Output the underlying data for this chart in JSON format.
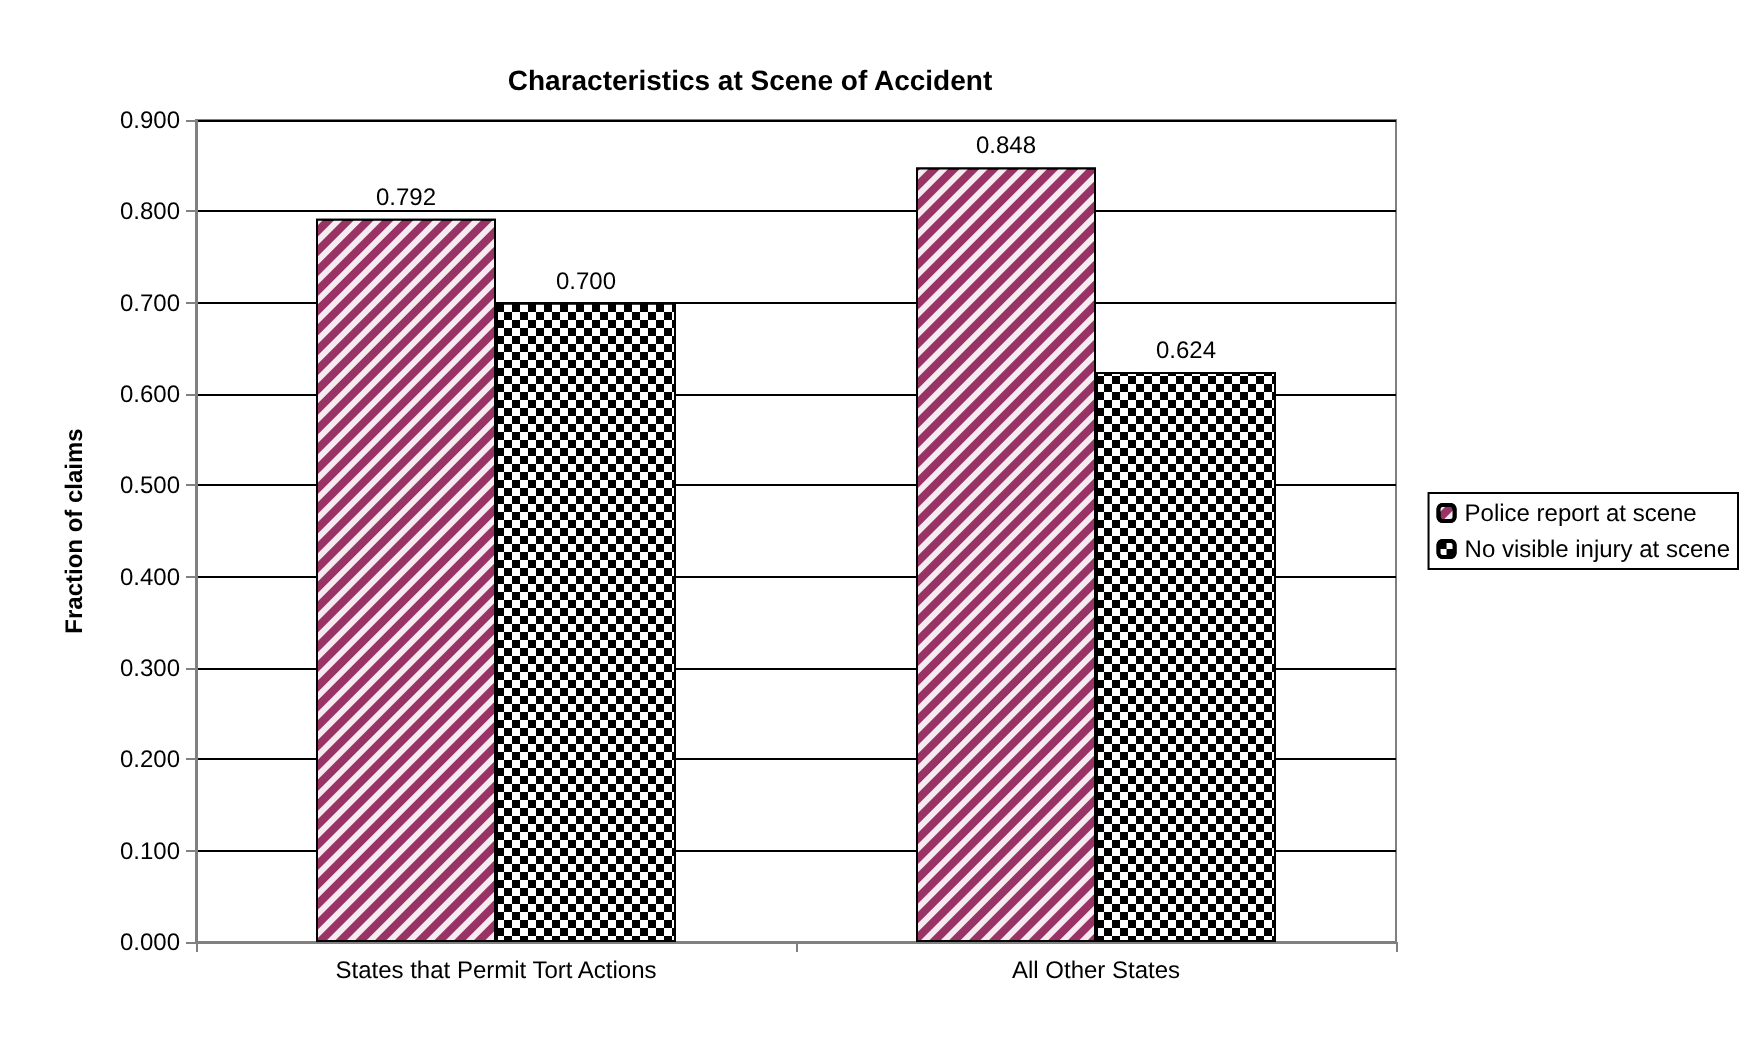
{
  "chart_data": {
    "type": "bar",
    "title": "Characteristics at Scene of Accident",
    "ylabel": "Fraction of claims",
    "categories": [
      "States that Permit Tort Actions",
      "All Other States"
    ],
    "series": [
      {
        "name": "Police report at scene",
        "color": "#993366",
        "values": [
          0.792,
          0.848
        ],
        "value_labels": [
          "0.792",
          "0.848"
        ]
      },
      {
        "name": "No visible injury at scene",
        "color": "#000000",
        "values": [
          0.7,
          0.624
        ],
        "value_labels": [
          "0.700",
          "0.624"
        ]
      }
    ],
    "ylim": [
      0,
      0.9
    ],
    "yticks": [
      {
        "value": 0,
        "label": "0.000"
      },
      {
        "value": 0.1,
        "label": "0.100"
      },
      {
        "value": 0.2,
        "label": "0.200"
      },
      {
        "value": 0.3,
        "label": "0.300"
      },
      {
        "value": 0.4,
        "label": "0.400"
      },
      {
        "value": 0.5,
        "label": "0.500"
      },
      {
        "value": 0.6,
        "label": "0.600"
      },
      {
        "value": 0.7,
        "label": "0.700"
      },
      {
        "value": 0.8,
        "label": "0.800"
      },
      {
        "value": 0.9,
        "label": "0.900"
      }
    ],
    "grid": "y",
    "legend": "right"
  }
}
